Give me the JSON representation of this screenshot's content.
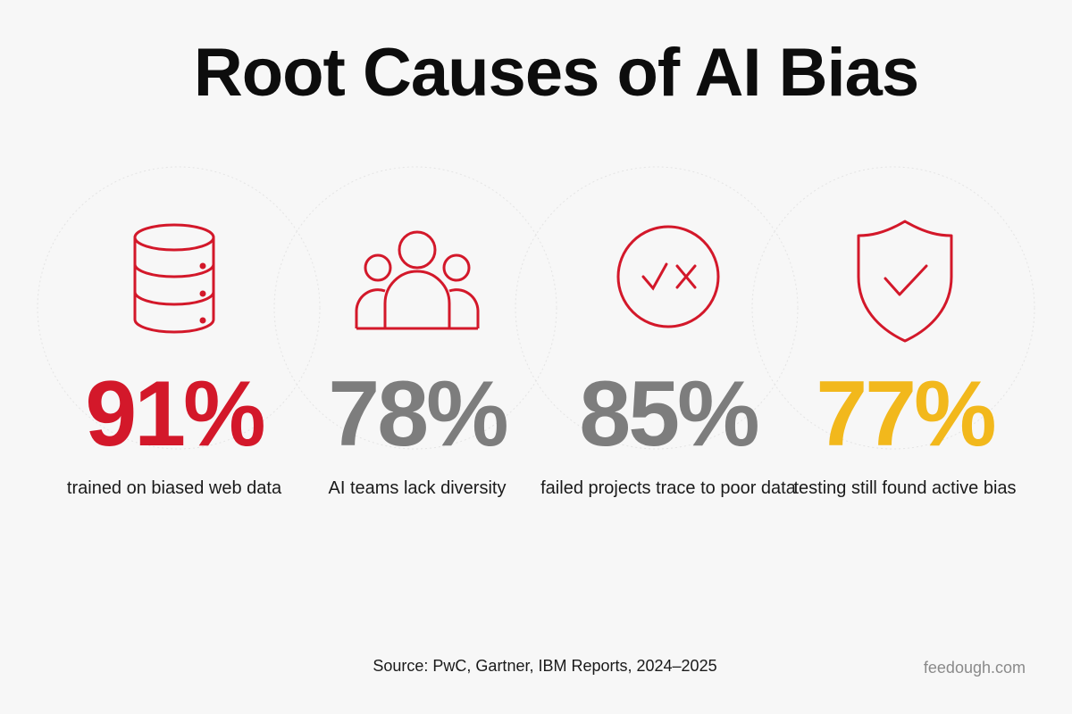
{
  "title": "Root Causes of AI Bias",
  "stats": [
    {
      "value": "91%",
      "label": "trained on biased web data",
      "color": "#d3182a",
      "icon": "database-icon"
    },
    {
      "value": "78%",
      "label": "AI teams lack diversity",
      "color": "#7d7d7d",
      "icon": "people-icon"
    },
    {
      "value": "85%",
      "label": "failed projects trace to poor data",
      "color": "#7d7d7d",
      "icon": "check-x-circle-icon"
    },
    {
      "value": "77%",
      "label": "testing still found active bias",
      "color": "#f2b81c",
      "icon": "shield-check-icon"
    }
  ],
  "icon_color": "#d3182a",
  "source": "Source: PwC, Gartner, IBM Reports, 2024–2025",
  "brand": "feedough.com"
}
